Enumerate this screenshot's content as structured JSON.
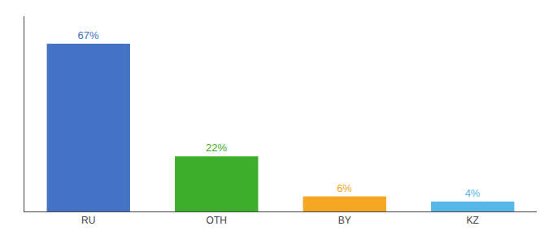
{
  "chart_data": {
    "type": "bar",
    "categories": [
      "RU",
      "OTH",
      "BY",
      "KZ"
    ],
    "values": [
      67,
      22,
      6,
      4
    ],
    "value_labels": [
      "67%",
      "22%",
      "6%",
      "4%"
    ],
    "colors": [
      "#4472c4",
      "#3dae2b",
      "#f5a623",
      "#57b8e8"
    ],
    "ylim": [
      0,
      78
    ],
    "grid": false,
    "data_labels": true,
    "tick_labels": "x"
  }
}
